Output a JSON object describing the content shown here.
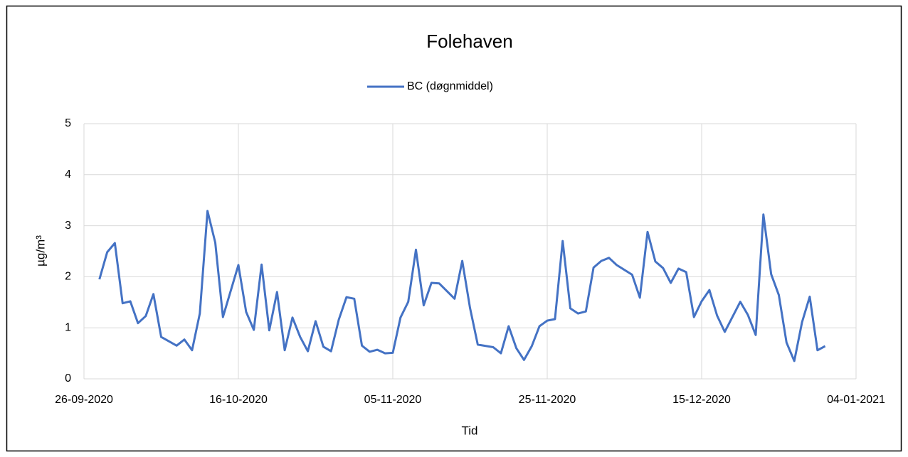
{
  "chart_data": {
    "type": "line",
    "title": "Folehaven",
    "xlabel": "Tid",
    "ylabel": "µg/m³",
    "x": [
      "28-09-2020",
      "29-09-2020",
      "30-09-2020",
      "01-10-2020",
      "02-10-2020",
      "03-10-2020",
      "04-10-2020",
      "05-10-2020",
      "06-10-2020",
      "08-10-2020",
      "09-10-2020",
      "10-10-2020",
      "11-10-2020",
      "12-10-2020",
      "13-10-2020",
      "14-10-2020",
      "16-10-2020",
      "17-10-2020",
      "18-10-2020",
      "19-10-2020",
      "20-10-2020",
      "21-10-2020",
      "22-10-2020",
      "23-10-2020",
      "24-10-2020",
      "25-10-2020",
      "26-10-2020",
      "27-10-2020",
      "28-10-2020",
      "29-10-2020",
      "30-10-2020",
      "31-10-2020",
      "01-11-2020",
      "02-11-2020",
      "03-11-2020",
      "04-11-2020",
      "05-11-2020",
      "06-11-2020",
      "07-11-2020",
      "08-11-2020",
      "09-11-2020",
      "10-11-2020",
      "11-11-2020",
      "13-11-2020",
      "14-11-2020",
      "15-11-2020",
      "16-11-2020",
      "18-11-2020",
      "19-11-2020",
      "20-11-2020",
      "21-11-2020",
      "22-11-2020",
      "23-11-2020",
      "24-11-2020",
      "25-11-2020",
      "26-11-2020",
      "27-11-2020",
      "28-11-2020",
      "29-11-2020",
      "30-11-2020",
      "01-12-2020",
      "02-12-2020",
      "03-12-2020",
      "04-12-2020",
      "06-12-2020",
      "07-12-2020",
      "08-12-2020",
      "09-12-2020",
      "10-12-2020",
      "11-12-2020",
      "12-12-2020",
      "13-12-2020",
      "14-12-2020",
      "15-12-2020",
      "16-12-2020",
      "17-12-2020",
      "18-12-2020",
      "20-12-2020",
      "21-12-2020",
      "22-12-2020",
      "23-12-2020",
      "24-12-2020",
      "25-12-2020",
      "26-12-2020",
      "27-12-2020",
      "28-12-2020",
      "29-12-2020",
      "30-12-2020",
      "31-12-2020"
    ],
    "series": [
      {
        "name": "BC (døgnmiddel)",
        "color": "#4472c4",
        "values": [
          1.95,
          2.48,
          2.66,
          1.48,
          1.52,
          1.09,
          1.23,
          1.66,
          0.82,
          0.65,
          0.77,
          0.56,
          1.28,
          3.29,
          2.67,
          1.21,
          2.23,
          1.31,
          0.96,
          2.24,
          0.95,
          1.7,
          0.56,
          1.2,
          0.82,
          0.54,
          1.13,
          0.63,
          0.54,
          1.16,
          1.6,
          1.57,
          0.65,
          0.53,
          0.57,
          0.5,
          0.51,
          1.2,
          1.51,
          2.53,
          1.44,
          1.88,
          1.87,
          1.57,
          2.31,
          1.39,
          0.67,
          0.62,
          0.5,
          1.03,
          0.6,
          0.37,
          0.64,
          1.03,
          1.14,
          1.17,
          2.7,
          1.38,
          1.28,
          1.32,
          2.18,
          2.31,
          2.37,
          2.23,
          2.04,
          1.59,
          2.88,
          2.3,
          2.17,
          1.88,
          2.16,
          2.09,
          1.21,
          1.52,
          1.74,
          1.24,
          0.92,
          1.51,
          1.25,
          0.86,
          3.22,
          2.05,
          1.64,
          0.71,
          0.35,
          1.11,
          1.61,
          0.56,
          0.64
        ]
      }
    ],
    "xlim": [
      "26-09-2020",
      "04-01-2021"
    ],
    "xticks": [
      "26-09-2020",
      "16-10-2020",
      "05-11-2020",
      "25-11-2020",
      "15-12-2020",
      "04-01-2021"
    ],
    "ylim": [
      0,
      5
    ],
    "yticks": [
      0,
      1,
      2,
      3,
      4,
      5
    ],
    "grid": true,
    "legend": "top"
  }
}
